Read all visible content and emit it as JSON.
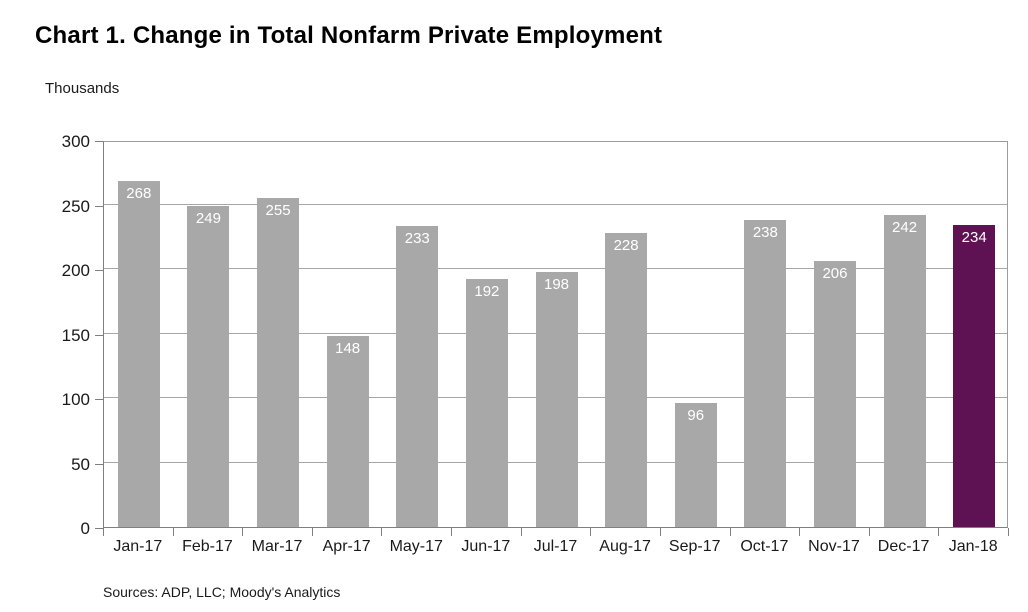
{
  "title": "Chart 1. Change in Total Nonfarm Private Employment",
  "units_label": "Thousands",
  "source_note": "Sources: ADP, LLC; Moody's Analytics",
  "colors": {
    "bar_default": "#a8a8a8",
    "bar_highlight": "#5e1253",
    "gridline": "#a6a6a6",
    "axis": "#7f7f7f",
    "value_label": "#ffffff"
  },
  "chart_data": {
    "type": "bar",
    "title": "Chart 1. Change in Total Nonfarm Private Employment",
    "ylabel": "Thousands",
    "xlabel": "",
    "categories": [
      "Jan-17",
      "Feb-17",
      "Mar-17",
      "Apr-17",
      "May-17",
      "Jun-17",
      "Jul-17",
      "Aug-17",
      "Sep-17",
      "Oct-17",
      "Nov-17",
      "Dec-17",
      "Jan-18"
    ],
    "values": [
      268,
      249,
      255,
      148,
      233,
      192,
      198,
      228,
      96,
      238,
      206,
      242,
      234
    ],
    "highlight_index": 12,
    "ylim": [
      0,
      300
    ],
    "ytick_step": 50,
    "yticks": [
      0,
      50,
      100,
      150,
      200,
      250,
      300
    ],
    "grid": true,
    "legend_position": "none",
    "data_labels": "inside-top",
    "source": "Sources: ADP, LLC; Moody's Analytics"
  }
}
